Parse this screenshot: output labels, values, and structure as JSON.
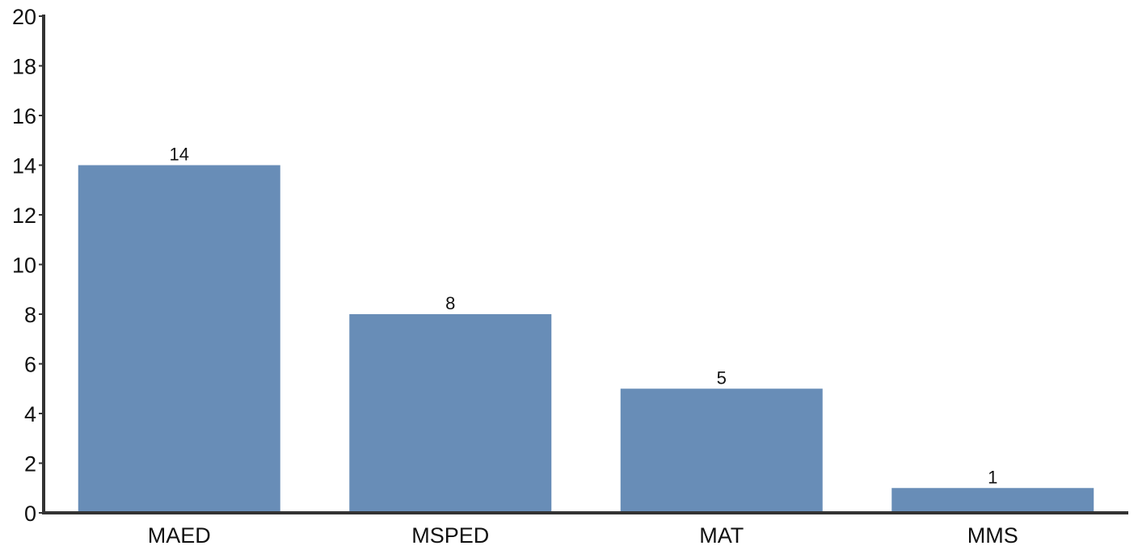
{
  "chart_data": {
    "type": "bar",
    "categories": [
      "MAED",
      "MSPED",
      "MAT",
      "MMS"
    ],
    "values": [
      14,
      8,
      5,
      1
    ],
    "data_labels": [
      "14",
      "8",
      "5",
      "1"
    ],
    "title": "",
    "xlabel": "",
    "ylabel": "",
    "ylim": [
      0,
      20
    ],
    "yticks": [
      0,
      2,
      4,
      6,
      8,
      10,
      12,
      14,
      16,
      18,
      20
    ],
    "ytick_labels": [
      "0",
      "2",
      "4",
      "6",
      "8",
      "10",
      "12",
      "14",
      "16",
      "18",
      "20"
    ],
    "grid": false,
    "legend": "none",
    "colors": {
      "bar": "#688db7",
      "axis": "#333333",
      "text": "#111111"
    }
  }
}
